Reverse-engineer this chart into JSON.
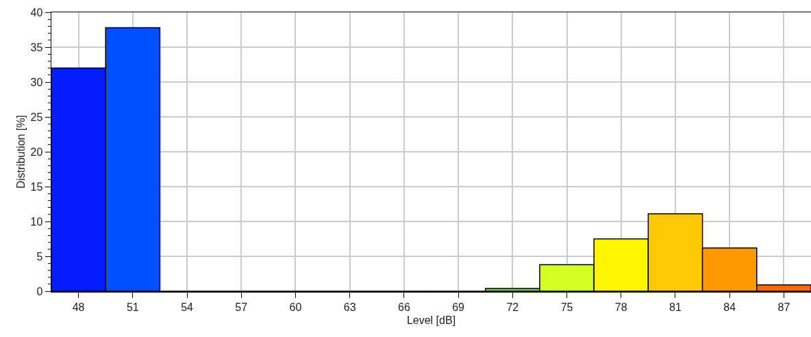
{
  "chart_data": {
    "type": "histogram",
    "xlabel": "Level [dB]",
    "ylabel": "Distribution [%]",
    "bins": [
      46.5,
      49.5,
      52.5,
      55.5,
      58.5,
      61.5,
      64.5,
      67.5,
      70.5,
      73.5,
      76.5,
      79.5,
      82.5,
      85.5,
      88.5
    ],
    "values": [
      32,
      37.8,
      0,
      0,
      0,
      0,
      0,
      0,
      0.4,
      3.8,
      7.5,
      11.1,
      6.2,
      0.9
    ],
    "colors": [
      "#001cff",
      "#0050ff",
      "#0090ff",
      "#00c0ff",
      "#00e0c0",
      "#40e080",
      "#60d060",
      "#80d040",
      "#7ccc3a",
      "#d4ff22",
      "#fff500",
      "#ffc800",
      "#ff9900",
      "#ff6a00"
    ],
    "xlim": [
      46.5,
      88.5
    ],
    "xticks": [
      48,
      51,
      54,
      57,
      60,
      63,
      66,
      69,
      72,
      75,
      78,
      81,
      84,
      87
    ],
    "ylim": [
      0,
      40
    ],
    "yticks": [
      0,
      5,
      10,
      15,
      20,
      25,
      30,
      35,
      40
    ],
    "grid": true
  }
}
